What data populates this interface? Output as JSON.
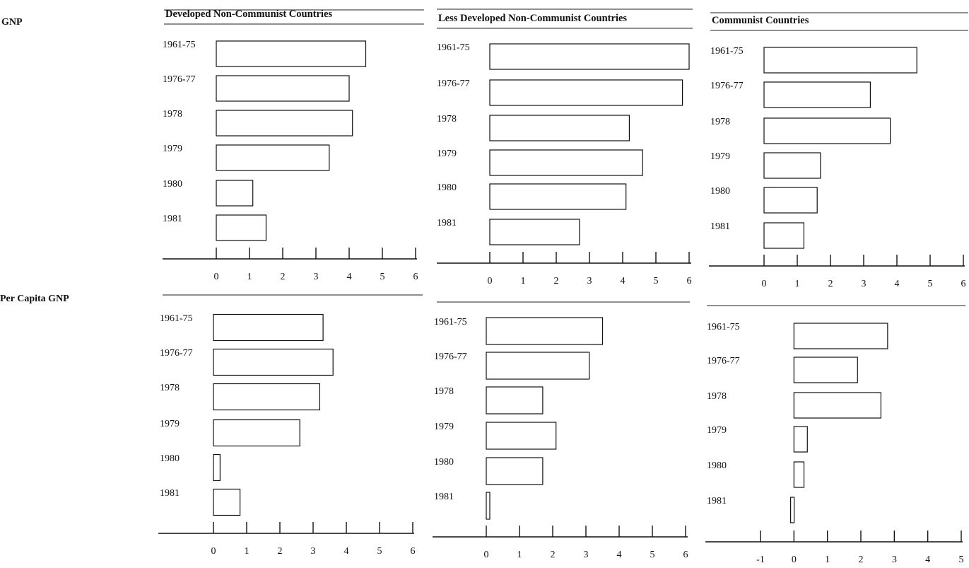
{
  "row_labels": [
    "GNP",
    "Per Capita GNP"
  ],
  "column_titles": [
    "Developed Non-Communist Countries",
    "Less Developed Non-Communist Countries",
    "Communist Countries"
  ],
  "chart_data": [
    {
      "type": "bar",
      "orientation": "horizontal",
      "row": "GNP",
      "title": "Developed Non-Communist Countries",
      "categories": [
        "1961-75",
        "1976-77",
        "1978",
        "1979",
        "1980",
        "1981"
      ],
      "values": [
        4.5,
        4.0,
        4.1,
        3.4,
        1.1,
        1.5
      ],
      "xlim": [
        0,
        6
      ],
      "xticks": [
        0,
        1,
        2,
        3,
        4,
        5,
        6
      ]
    },
    {
      "type": "bar",
      "orientation": "horizontal",
      "row": "GNP",
      "title": "Less Developed Non-Communist Countries",
      "categories": [
        "1961-75",
        "1976-77",
        "1978",
        "1979",
        "1980",
        "1981"
      ],
      "values": [
        6.0,
        5.8,
        4.2,
        4.6,
        4.1,
        2.7
      ],
      "xlim": [
        0,
        6
      ],
      "xticks": [
        0,
        1,
        2,
        3,
        4,
        5,
        6
      ]
    },
    {
      "type": "bar",
      "orientation": "horizontal",
      "row": "GNP",
      "title": "Communist Countries",
      "categories": [
        "1961-75",
        "1976-77",
        "1978",
        "1979",
        "1980",
        "1981"
      ],
      "values": [
        4.6,
        3.2,
        3.8,
        1.7,
        1.6,
        1.2
      ],
      "xlim": [
        0,
        6
      ],
      "xticks": [
        0,
        1,
        2,
        3,
        4,
        5,
        6
      ]
    },
    {
      "type": "bar",
      "orientation": "horizontal",
      "row": "Per Capita GNP",
      "title": "",
      "categories": [
        "1961-75",
        "1976-77",
        "1978",
        "1979",
        "1980",
        "1981"
      ],
      "values": [
        3.3,
        3.6,
        3.2,
        2.6,
        0.2,
        0.8
      ],
      "xlim": [
        0,
        6
      ],
      "xticks": [
        0,
        1,
        2,
        3,
        4,
        5,
        6
      ]
    },
    {
      "type": "bar",
      "orientation": "horizontal",
      "row": "Per Capita GNP",
      "title": "",
      "categories": [
        "1961-75",
        "1976-77",
        "1978",
        "1979",
        "1980",
        "1981"
      ],
      "values": [
        3.5,
        3.1,
        1.7,
        2.1,
        1.7,
        0.1
      ],
      "xlim": [
        0,
        6
      ],
      "xticks": [
        0,
        1,
        2,
        3,
        4,
        5,
        6
      ]
    },
    {
      "type": "bar",
      "orientation": "horizontal",
      "row": "Per Capita GNP",
      "title": "",
      "categories": [
        "1961-75",
        "1976-77",
        "1978",
        "1979",
        "1980",
        "1981"
      ],
      "values": [
        2.8,
        1.9,
        2.6,
        0.4,
        0.3,
        -0.1
      ],
      "xlim": [
        -1,
        5
      ],
      "xticks": [
        -1,
        0,
        1,
        2,
        3,
        4,
        5
      ]
    }
  ]
}
